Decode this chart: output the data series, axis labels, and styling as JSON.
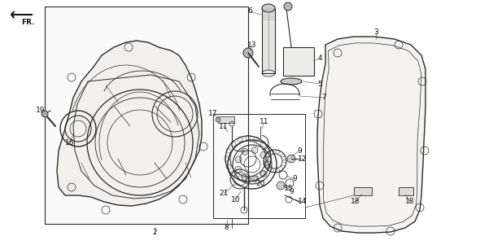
{
  "bg_color": "#ffffff",
  "lc": "#2a2a2a",
  "tc": "#111111",
  "fs": 6.5,
  "figsize": [
    5.9,
    3.01
  ],
  "dpi": 100
}
